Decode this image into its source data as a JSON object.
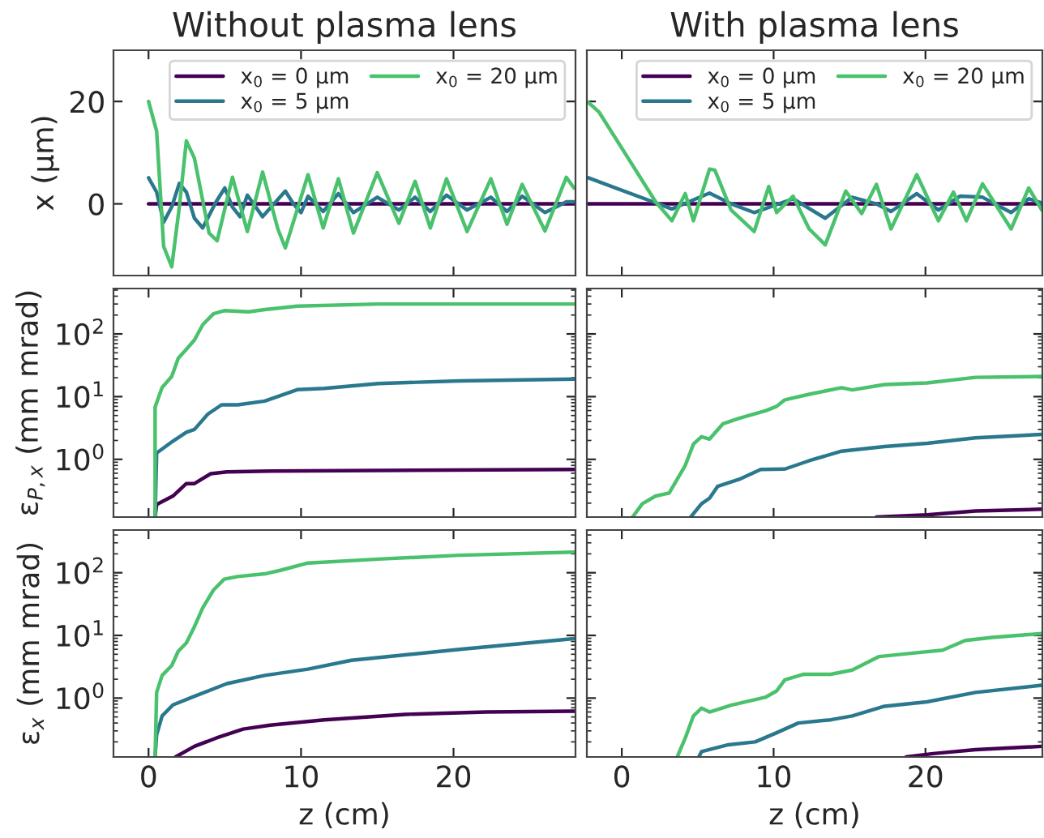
{
  "chart_data": [
    {
      "type": "line",
      "title": "Without plasma lens",
      "ylabel": "x (μm)",
      "xlim": [
        -2.3,
        28
      ],
      "ylim": [
        -14,
        30
      ],
      "xticks": [
        0,
        10,
        20
      ],
      "yticks": [
        0,
        20
      ],
      "tick_labels": "y",
      "legend": "top right",
      "series": [
        {
          "name": "x$_{0}$ = 0 μm",
          "color": "#440154",
          "x": [
            0,
            28
          ],
          "values": [
            0,
            0
          ]
        },
        {
          "name": "x$_{0}$ = 5 μm",
          "color": "#2a788e",
          "x": [
            0,
            0.53,
            0.99,
            1.52,
            2.02,
            2.48,
            3.01,
            3.55,
            4.43,
            5.0,
            5.5,
            6.0,
            6.48,
            7.48,
            8.97,
            9.5,
            10.0,
            10.46,
            11.45,
            12.45,
            13.44,
            15.0,
            16.42,
            17.48,
            18.48,
            19.54,
            20.89,
            22.45,
            23.51,
            24.5,
            26.0,
            27.4,
            27.9
          ],
          "values": [
            5.1,
            2.3,
            -3.6,
            -0.6,
            4,
            2.3,
            -2.8,
            -4.7,
            0.4,
            3.1,
            -0.6,
            -2.5,
            1.7,
            -2.5,
            2.5,
            0,
            -1.7,
            1.5,
            -1.5,
            2,
            -1.7,
            1.3,
            -1.2,
            1.3,
            -1.5,
            1.7,
            -1.2,
            1.3,
            -1.5,
            1.5,
            -1.7,
            0.4,
            0.4
          ]
        },
        {
          "name": "x$_{0}$ = 20 μm",
          "color": "#4ac16d",
          "x": [
            0,
            0.53,
            0.99,
            1.52,
            2.02,
            2.48,
            3.01,
            3.97,
            4.5,
            5.5,
            6.48,
            7.48,
            8.48,
            8.97,
            10.46,
            11.45,
            12.45,
            13.44,
            15.0,
            16.42,
            17.48,
            18.48,
            19.54,
            20.89,
            22.45,
            23.51,
            24.5,
            26.0,
            27.4,
            27.9
          ],
          "values": [
            20,
            14.2,
            -8.3,
            -12.3,
            -0.6,
            12.3,
            8.9,
            -5.7,
            -7.2,
            5.2,
            -5.4,
            6.2,
            -4.9,
            -8.6,
            5.7,
            -4.7,
            4.9,
            -5.7,
            6.1,
            -3.8,
            4.4,
            -4.7,
            4.9,
            -5.4,
            4.9,
            -4,
            3.8,
            -5.3,
            5.2,
            3.1
          ]
        }
      ]
    },
    {
      "type": "line",
      "title": "With plasma lens",
      "xlim": [
        -2.3,
        27.7
      ],
      "ylim": [
        -14,
        30
      ],
      "xticks": [
        0,
        10,
        20
      ],
      "yticks": [
        0,
        20
      ],
      "tick_labels": false,
      "legend": "top right",
      "series": [
        {
          "name": "x$_{0}$ = 0 μm",
          "color": "#440154",
          "x": [
            -2.3,
            27.7
          ],
          "values": [
            0,
            0
          ]
        },
        {
          "name": "x$_{0}$ = 5 μm",
          "color": "#2a788e",
          "x": [
            -2.2,
            2.23,
            3.3,
            5.78,
            7.2,
            8.72,
            11.28,
            13.4,
            15.18,
            16.77,
            17.73,
            19.43,
            20.85,
            22.27,
            23.76,
            25.64,
            26.8,
            27.66
          ],
          "values": [
            5.1,
            0.2,
            -1,
            2.1,
            0,
            -1.7,
            1,
            -2.8,
            1.3,
            0,
            -1.5,
            2,
            -1.2,
            1.5,
            1.3,
            -1.7,
            1,
            0.2
          ]
        },
        {
          "name": "x$_{0}$ = 20 μm",
          "color": "#4ac16d",
          "x": [
            -2.2,
            -1.49,
            2.23,
            3.3,
            4.18,
            4.72,
            5.78,
            6.13,
            7.2,
            8.72,
            9.68,
            10.2,
            11.28,
            12.34,
            13.4,
            14.75,
            15.8,
            16.77,
            17.73,
            19.43,
            20.85,
            21.84,
            22.7,
            23.76,
            25.64,
            26.8,
            27.66
          ],
          "values": [
            19.8,
            17.9,
            0.4,
            -3.3,
            2,
            -3.3,
            6.8,
            6.6,
            -1.2,
            -5.4,
            3.4,
            -1.7,
            1.5,
            -4.9,
            -8,
            2.5,
            -1.9,
            3.8,
            -4.9,
            5.7,
            -3.3,
            2.3,
            -3.3,
            3.9,
            -4.9,
            3.1,
            -1.2
          ]
        }
      ]
    },
    {
      "type": "line",
      "ylabel": "ε$_{P,x}$ (mm mrad)",
      "log": true,
      "xlim": [
        -2.3,
        28
      ],
      "ylim": [
        0.12,
        530
      ],
      "xticks": [
        0,
        10,
        20
      ],
      "yticks": [
        {
          "value": 1,
          "label": "10$^{0}$"
        },
        {
          "value": 10,
          "label": "10$^{1}$"
        },
        {
          "value": 100,
          "label": "10$^{2}$"
        }
      ],
      "tick_labels": "y",
      "series": [
        {
          "color": "#440154",
          "x": [
            0.43,
            0.53,
            1.6,
            2.48,
            3.01,
            4.08,
            5.14,
            7.98,
            27.9
          ],
          "values": [
            0.12,
            0.19,
            0.26,
            0.41,
            0.41,
            0.59,
            0.63,
            0.65,
            0.69
          ]
        },
        {
          "color": "#2a788e",
          "x": [
            0.43,
            0.53,
            1.6,
            2.48,
            3.01,
            3.9,
            4.79,
            5.85,
            7.62,
            9.75,
            11.52,
            15.07,
            20.4,
            27.9
          ],
          "values": [
            0.12,
            1.26,
            1.95,
            2.7,
            3.0,
            5.3,
            7.4,
            7.4,
            8.5,
            12.9,
            13.5,
            16.2,
            17.8,
            19
          ]
        },
        {
          "color": "#4ac16d",
          "x": [
            0.43,
            0.43,
            0.89,
            1.52,
            1.95,
            2.48,
            3.01,
            3.55,
            4.26,
            4.96,
            6.56,
            7.62,
            9.75,
            15.07,
            27.9
          ],
          "values": [
            0.12,
            6.8,
            14,
            21,
            41,
            57,
            80,
            140,
            210,
            235,
            225,
            245,
            277,
            300,
            300
          ]
        }
      ]
    },
    {
      "type": "line",
      "log": true,
      "xlim": [
        -2.3,
        27.7
      ],
      "ylim": [
        0.12,
        530
      ],
      "xticks": [
        0,
        10,
        20
      ],
      "yticks": [
        {
          "value": 1,
          "label": null
        },
        {
          "value": 10,
          "label": null
        },
        {
          "value": 100,
          "label": null
        }
      ],
      "tick_labels": false,
      "series": [
        {
          "color": "#440154",
          "x": [
            16.77,
            20.1,
            23.3,
            27.66
          ],
          "values": [
            0.12,
            0.13,
            0.15,
            0.16
          ]
        },
        {
          "color": "#2a788e",
          "x": [
            4.54,
            5.25,
            5.78,
            6.31,
            7.73,
            9.15,
            10.74,
            12.34,
            14.47,
            17.3,
            20.1,
            23.3,
            27.66
          ],
          "values": [
            0.12,
            0.195,
            0.24,
            0.37,
            0.48,
            0.69,
            0.7,
            0.95,
            1.35,
            1.6,
            1.8,
            2.2,
            2.5
          ]
        },
        {
          "color": "#4ac16d",
          "x": [
            0.71,
            1.35,
            2.23,
            3.12,
            4.18,
            4.72,
            5.25,
            5.78,
            6.67,
            7.73,
            9.5,
            10.2,
            10.74,
            12.34,
            14.47,
            15.18,
            17.3,
            20.1,
            23.3,
            27.66
          ],
          "values": [
            0.12,
            0.195,
            0.26,
            0.29,
            0.8,
            1.75,
            2.3,
            2.1,
            3.7,
            4.5,
            6,
            7,
            8.9,
            10.9,
            13.9,
            12.8,
            15.6,
            16.5,
            20.3,
            21
          ]
        }
      ]
    },
    {
      "type": "line",
      "xlabel": "z (cm)",
      "ylabel": "ε$_{x}$ (mm mrad)",
      "log": true,
      "xlim": [
        -2.3,
        28
      ],
      "ylim": [
        0.115,
        480
      ],
      "xticks": [
        0,
        10,
        20
      ],
      "yticks": [
        {
          "value": 1,
          "label": "10$^{0}$"
        },
        {
          "value": 10,
          "label": "10$^{1}$"
        },
        {
          "value": 100,
          "label": "10$^{2}$"
        }
      ],
      "series": [
        {
          "color": "#440154",
          "x": [
            1.77,
            3.01,
            4.43,
            6.2,
            7.98,
            11.52,
            16.84,
            22.16,
            27.9
          ],
          "values": [
            0.115,
            0.17,
            0.23,
            0.32,
            0.37,
            0.45,
            0.55,
            0.6,
            0.62
          ]
        },
        {
          "color": "#2a788e",
          "x": [
            0.43,
            0.53,
            0.89,
            1.6,
            3.01,
            5.14,
            7.62,
            10.46,
            13.3,
            16.84,
            20.4,
            27.9
          ],
          "values": [
            0.115,
            0.26,
            0.52,
            0.78,
            1.07,
            1.7,
            2.3,
            2.9,
            4.0,
            4.9,
            6.0,
            8.9
          ]
        },
        {
          "color": "#4ac16d",
          "x": [
            0.43,
            0.53,
            0.89,
            1.52,
            1.95,
            2.48,
            3.01,
            3.55,
            4.26,
            4.96,
            5.85,
            7.62,
            8.69,
            10.46,
            15.07,
            20.4,
            27.9
          ],
          "values": [
            0.115,
            1.23,
            2.3,
            3.3,
            5.6,
            7.6,
            13.8,
            27.5,
            53,
            79,
            87,
            96,
            110,
            143,
            165,
            190,
            213
          ]
        }
      ]
    },
    {
      "type": "line",
      "xlabel": "z (cm)",
      "log": true,
      "xlim": [
        -2.3,
        27.7
      ],
      "ylim": [
        0.115,
        480
      ],
      "xticks": [
        0,
        10,
        20
      ],
      "yticks": [
        {
          "value": 1,
          "label": null
        },
        {
          "value": 10,
          "label": null
        },
        {
          "value": 100,
          "label": null
        }
      ],
      "tick_labels": "x",
      "series": [
        {
          "color": "#440154",
          "x": [
            18.72,
            20.5,
            23.3,
            27.66
          ],
          "values": [
            0.115,
            0.13,
            0.15,
            0.17
          ]
        },
        {
          "color": "#2a788e",
          "x": [
            5.07,
            5.25,
            7.02,
            8.79,
            10.2,
            11.63,
            13.76,
            15.18,
            17.3,
            20.1,
            23.3,
            27.66
          ],
          "values": [
            0.115,
            0.14,
            0.18,
            0.2,
            0.28,
            0.4,
            0.45,
            0.52,
            0.74,
            0.87,
            1.23,
            1.6
          ]
        },
        {
          "color": "#4ac16d",
          "x": [
            3.65,
            4.18,
            4.72,
            5.25,
            5.78,
            7.2,
            9.5,
            10.2,
            10.74,
            11.99,
            13.76,
            15.18,
            16.95,
            19.43,
            21.13,
            22.62,
            24.4,
            27.66
          ],
          "values": [
            0.115,
            0.23,
            0.52,
            0.69,
            0.6,
            0.77,
            1.04,
            1.3,
            1.95,
            2.4,
            2.4,
            2.8,
            4.6,
            5.3,
            5.8,
            8.3,
            9.3,
            10.7
          ]
        }
      ]
    }
  ]
}
